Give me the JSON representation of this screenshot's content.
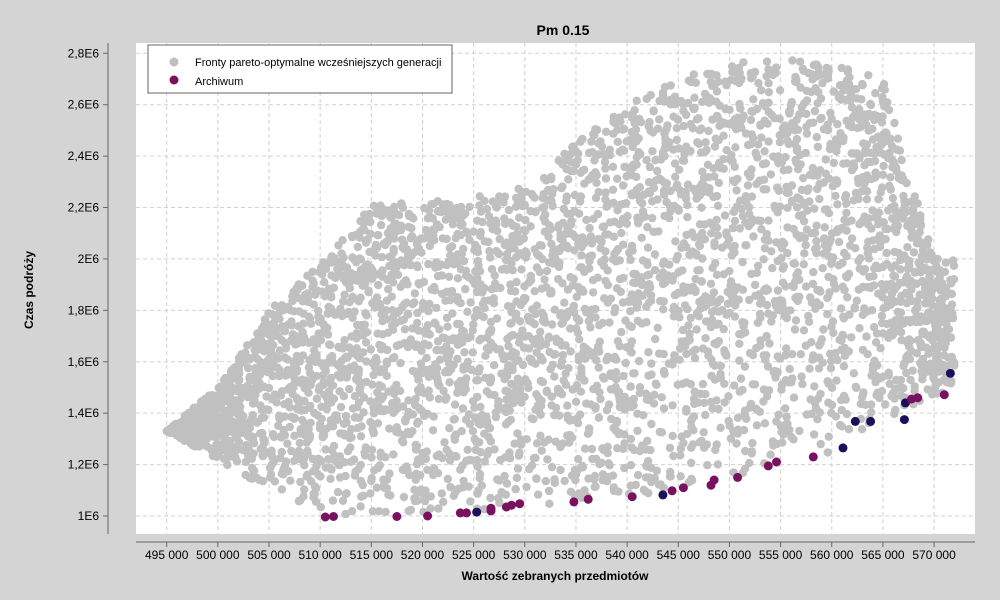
{
  "chart_data": {
    "type": "scatter",
    "title": "Pm 0.15",
    "xlabel": "Wartość zebranych przedmiotów",
    "ylabel": "Czas podróży",
    "xlim": [
      492000,
      574000
    ],
    "ylim": [
      930000,
      2840000
    ],
    "x_ticks": [
      495000,
      500000,
      505000,
      510000,
      515000,
      520000,
      525000,
      530000,
      535000,
      540000,
      545000,
      550000,
      555000,
      560000,
      565000,
      570000
    ],
    "x_tick_labels": [
      "495 000",
      "500 000",
      "505 000",
      "510 000",
      "515 000",
      "520 000",
      "525 000",
      "530 000",
      "535 000",
      "540 000",
      "545 000",
      "550 000",
      "555 000",
      "560 000",
      "565 000",
      "570 000"
    ],
    "y_ticks": [
      1000000,
      1200000,
      1400000,
      1600000,
      1800000,
      2000000,
      2200000,
      2400000,
      2600000,
      2800000
    ],
    "y_tick_labels": [
      "1E6",
      "1,2E6",
      "1,4E6",
      "1,6E6",
      "1,8E6",
      "2E6",
      "2,2E6",
      "2,4E6",
      "2,6E6",
      "2,8E6"
    ],
    "grid": true,
    "legend_position": "top-left",
    "series": [
      {
        "name": "Fronty pareto-optymalne wcześniejszych generacji",
        "color": "#c0c0c0",
        "envelope": {
          "x": [
            495000,
            500000,
            505000,
            510000,
            515000,
            520000,
            525000,
            530000,
            535000,
            540000,
            545000,
            550000,
            555000,
            560000,
            565000,
            570000
          ],
          "y_low": [
            1330000,
            1220000,
            1100000,
            1000000,
            1000000,
            1000000,
            1010000,
            1030000,
            1050000,
            1070000,
            1100000,
            1150000,
            1200000,
            1250000,
            1350000,
            1470000
          ],
          "y_high": [
            1330000,
            1500000,
            1800000,
            1980000,
            2210000,
            2220000,
            2240000,
            2280000,
            2450000,
            2600000,
            2700000,
            2760000,
            2780000,
            2760000,
            2700000,
            2000000
          ]
        },
        "points_count": 4200
      },
      {
        "name": "Archiwum",
        "color": "#7a1060",
        "points": [
          [
            510500,
            996000
          ],
          [
            511300,
            998000
          ],
          [
            517500,
            998000
          ],
          [
            520500,
            1000000
          ],
          [
            523700,
            1012000
          ],
          [
            524300,
            1012000
          ],
          [
            525300,
            1015000
          ],
          [
            526700,
            1020000
          ],
          [
            526700,
            1030000
          ],
          [
            528200,
            1035000
          ],
          [
            528700,
            1042000
          ],
          [
            529500,
            1048000
          ],
          [
            534800,
            1055000
          ],
          [
            536200,
            1065000
          ],
          [
            540500,
            1075000
          ],
          [
            543500,
            1082000
          ],
          [
            544400,
            1098000
          ],
          [
            545500,
            1110000
          ],
          [
            548200,
            1120000
          ],
          [
            548500,
            1140000
          ],
          [
            550800,
            1150000
          ],
          [
            553800,
            1195000
          ],
          [
            554600,
            1210000
          ],
          [
            558200,
            1230000
          ],
          [
            561100,
            1265000
          ],
          [
            562300,
            1368000
          ],
          [
            563800,
            1368000
          ],
          [
            567100,
            1375000
          ],
          [
            567200,
            1440000
          ],
          [
            567800,
            1455000
          ],
          [
            568400,
            1460000
          ],
          [
            571000,
            1472000
          ],
          [
            571600,
            1555000
          ]
        ],
        "dark_indices": [
          6,
          15,
          24,
          25,
          26,
          27,
          28,
          32
        ]
      }
    ]
  }
}
